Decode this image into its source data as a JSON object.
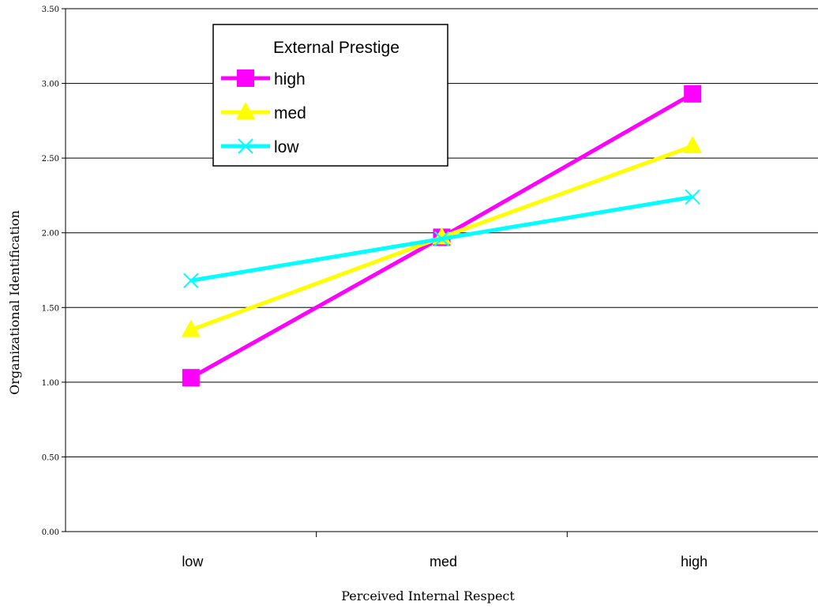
{
  "chart_data": {
    "type": "line",
    "title": "",
    "xlabel": "Perceived Internal Respect",
    "ylabel": "Organizational Identification",
    "categories": [
      "low",
      "med",
      "high"
    ],
    "ylim": [
      0,
      3.5
    ],
    "yticks": [
      "0.00",
      "0.50",
      "1.00",
      "1.50",
      "2.00",
      "2.50",
      "3.00",
      "3.50"
    ],
    "grid": "horizontal",
    "legend": {
      "title": "External Prestige",
      "position": "top-left"
    },
    "series": [
      {
        "name": "high",
        "values": [
          1.03,
          1.97,
          2.93
        ],
        "color": "#ff00ff",
        "marker": "square"
      },
      {
        "name": "med",
        "values": [
          1.35,
          1.97,
          2.58
        ],
        "color": "#ffff00",
        "marker": "triangle"
      },
      {
        "name": "low",
        "values": [
          1.68,
          1.96,
          2.24
        ],
        "color": "#00ffff",
        "marker": "x"
      }
    ]
  }
}
